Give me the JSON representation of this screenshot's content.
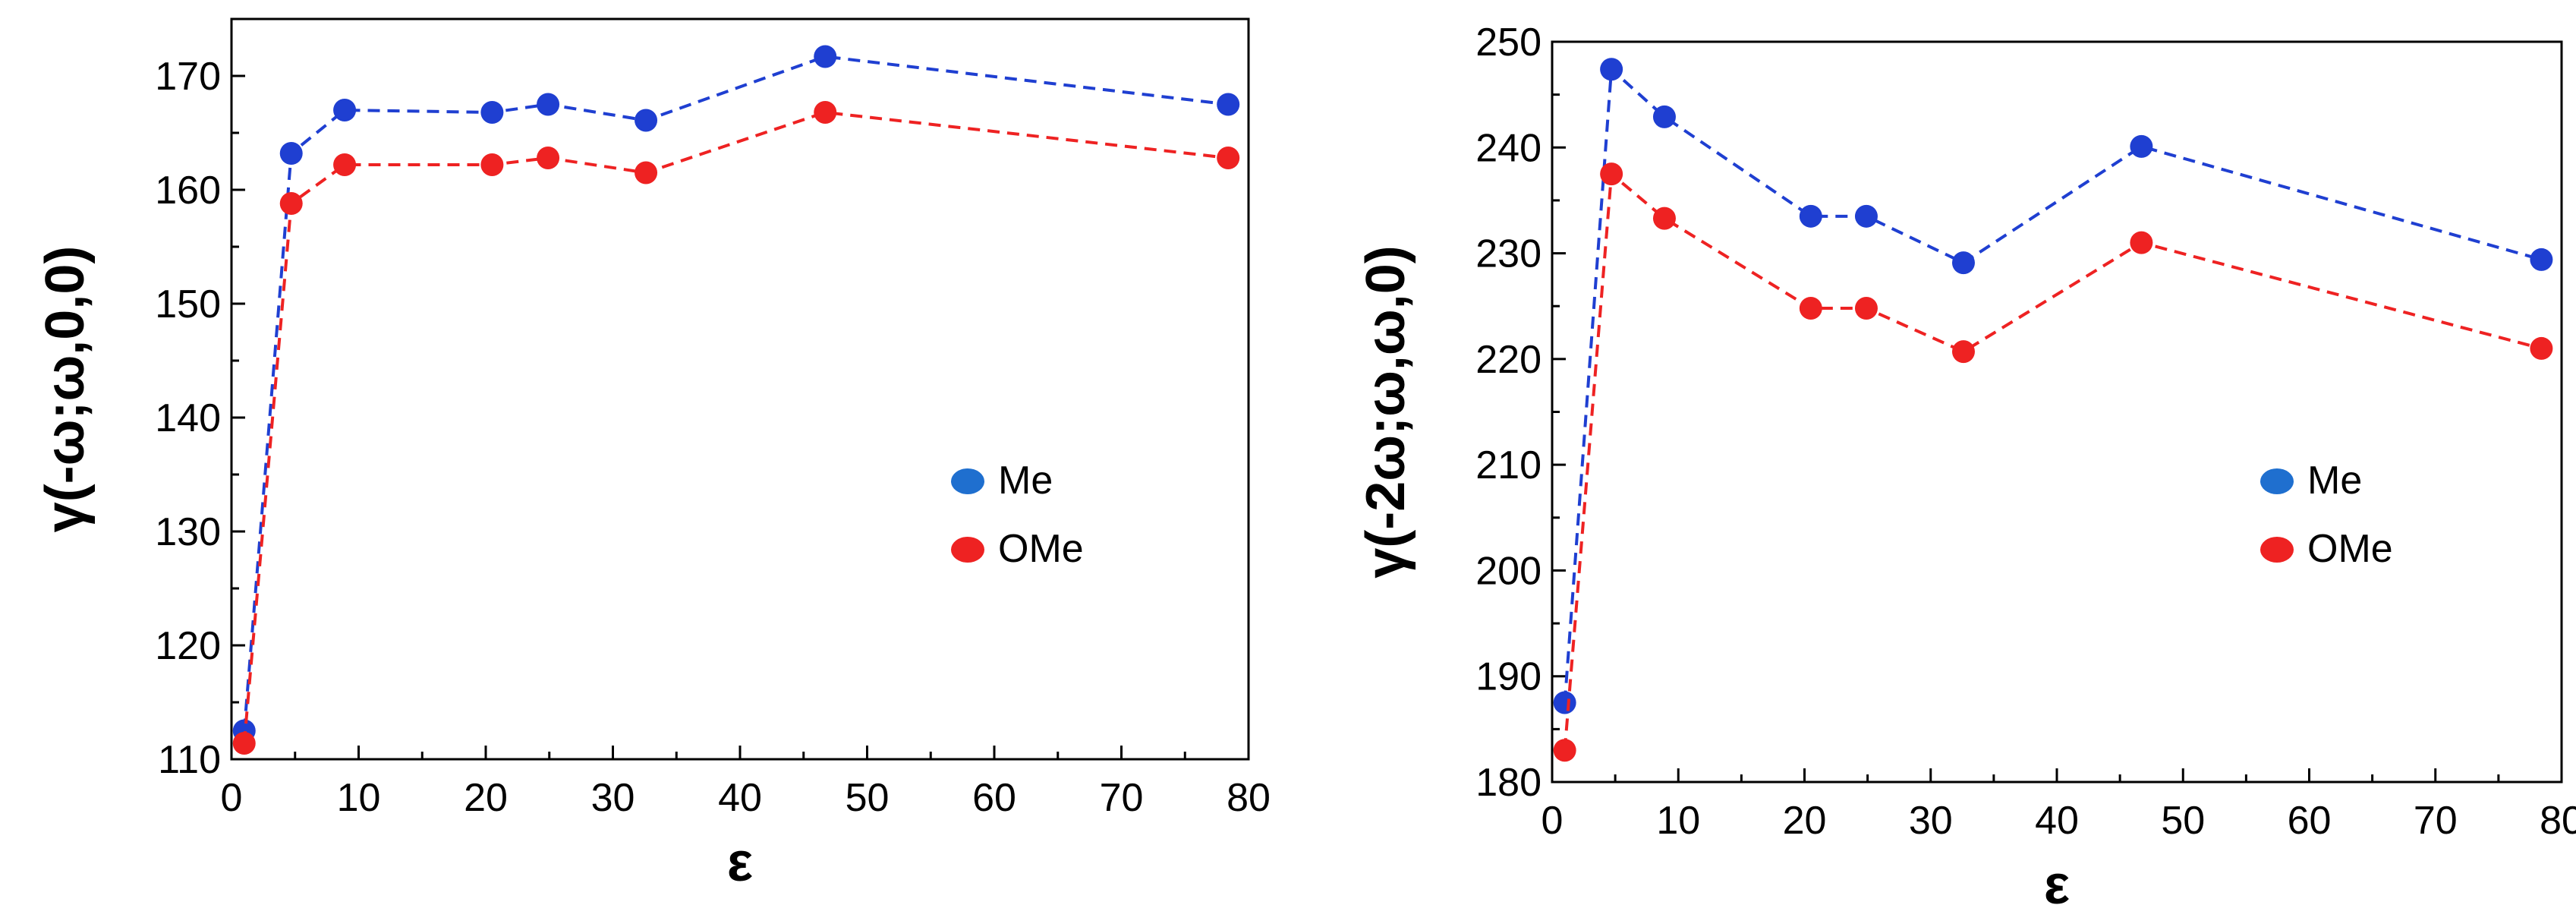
{
  "chart_data": [
    {
      "type": "line",
      "xlabel": "ε",
      "ylabel": "γ(-ω;ω,0,0)",
      "xlim": [
        0,
        80
      ],
      "ylim": [
        110,
        175
      ],
      "xticks": [
        0,
        10,
        20,
        30,
        40,
        50,
        60,
        70,
        80
      ],
      "yticks": [
        110,
        120,
        130,
        140,
        150,
        160,
        170
      ],
      "grid": false,
      "legend_position": "right",
      "x": [
        1.0,
        4.7,
        8.9,
        20.5,
        24.9,
        32.6,
        46.7,
        78.4
      ],
      "series": [
        {
          "name": "Me",
          "color": "#1f3fd1",
          "marker_color": "#1f3fd1",
          "legend_color": "#1f6fcf",
          "values": [
            112.5,
            163.2,
            167.0,
            166.8,
            167.5,
            166.1,
            171.7,
            167.5
          ]
        },
        {
          "name": "OMe",
          "color": "#ee2222",
          "marker_color": "#ee2222",
          "legend_color": "#ee2222",
          "values": [
            111.4,
            158.8,
            162.2,
            162.2,
            162.8,
            161.5,
            166.8,
            162.8
          ]
        }
      ]
    },
    {
      "type": "line",
      "xlabel": "ε",
      "ylabel": "γ(-2ω;ω,ω,0)",
      "xlim": [
        0,
        80
      ],
      "ylim": [
        180,
        250
      ],
      "xticks": [
        0,
        10,
        20,
        30,
        40,
        50,
        60,
        70,
        80
      ],
      "yticks": [
        180,
        190,
        200,
        210,
        220,
        230,
        240,
        250
      ],
      "grid": false,
      "legend_position": "right",
      "x": [
        1.0,
        4.7,
        8.9,
        20.5,
        24.9,
        32.6,
        46.7,
        78.4
      ],
      "series": [
        {
          "name": "Me",
          "color": "#1f3fd1",
          "marker_color": "#1f3fd1",
          "legend_color": "#1f6fcf",
          "values": [
            187.5,
            247.4,
            242.9,
            233.5,
            233.5,
            229.1,
            240.1,
            229.4
          ]
        },
        {
          "name": "OMe",
          "color": "#ee2222",
          "marker_color": "#ee2222",
          "legend_color": "#ee2222",
          "values": [
            183.0,
            237.5,
            233.3,
            224.8,
            224.8,
            220.7,
            231.0,
            221.0
          ]
        }
      ]
    }
  ]
}
